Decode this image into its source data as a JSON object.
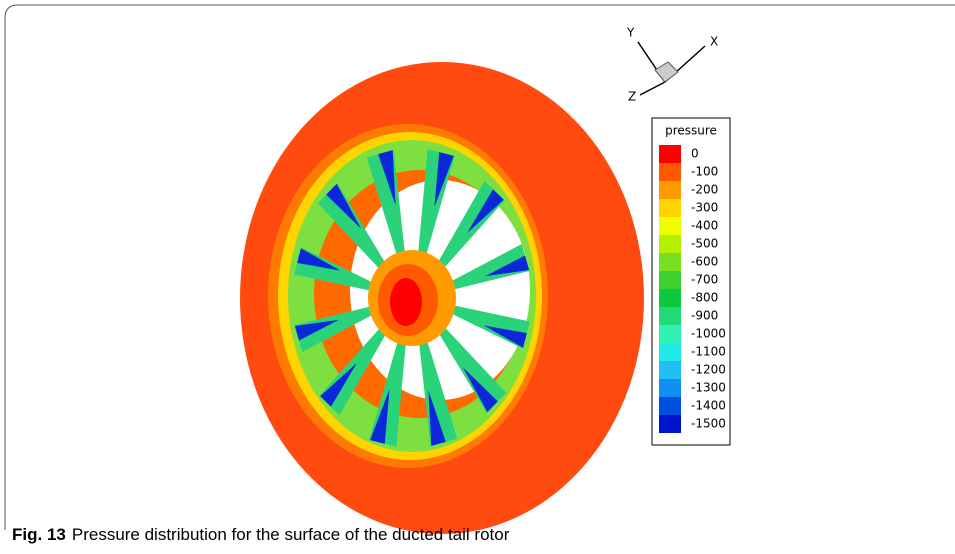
{
  "figure": {
    "triad": {
      "y": "Y",
      "x": "X",
      "z": "Z"
    },
    "legend": {
      "title": "pressure",
      "levels": [
        {
          "value": 0,
          "color": "#ff0000"
        },
        {
          "value": -100,
          "color": "#ff5a00"
        },
        {
          "value": -200,
          "color": "#ff9a00"
        },
        {
          "value": -300,
          "color": "#ffd400"
        },
        {
          "value": -400,
          "color": "#f0ff00"
        },
        {
          "value": -500,
          "color": "#b4f000"
        },
        {
          "value": -600,
          "color": "#78e020"
        },
        {
          "value": -700,
          "color": "#3cd030"
        },
        {
          "value": -800,
          "color": "#10c840"
        },
        {
          "value": -900,
          "color": "#20dc78"
        },
        {
          "value": -1000,
          "color": "#30f0b4"
        },
        {
          "value": -1100,
          "color": "#20e8e8"
        },
        {
          "value": -1200,
          "color": "#20c0f4"
        },
        {
          "value": -1300,
          "color": "#1090f0"
        },
        {
          "value": -1400,
          "color": "#0050e0"
        },
        {
          "value": -1500,
          "color": "#0014d0"
        }
      ]
    },
    "caption": {
      "label": "Fig. 13",
      "text": "Pressure distribution for the surface of the ducted tail rotor"
    }
  }
}
